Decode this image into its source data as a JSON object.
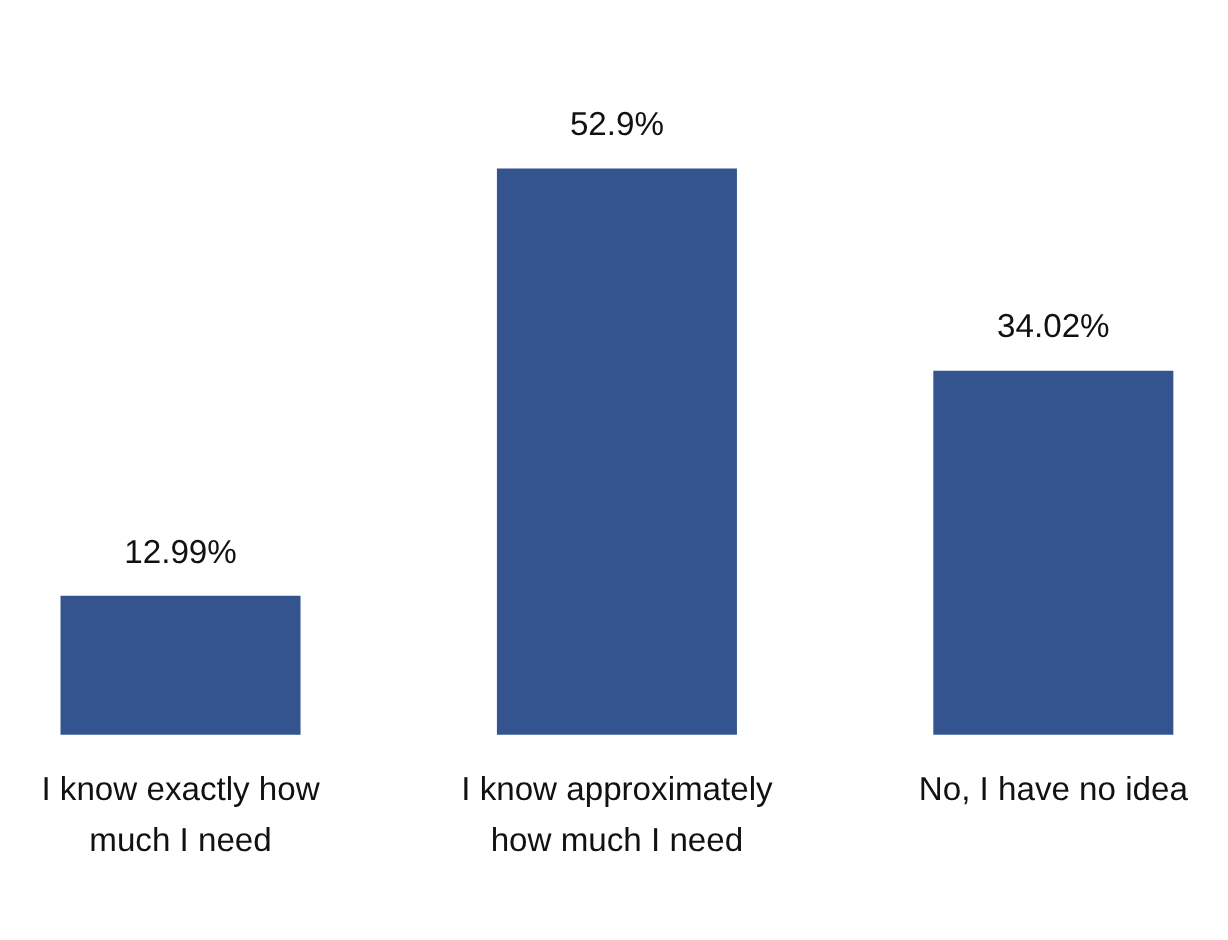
{
  "chart_data": {
    "type": "bar",
    "categories": [
      "I know exactly how much I need",
      "I know approximately how much I need",
      "No, I have no idea"
    ],
    "values": [
      12.99,
      52.9,
      34.02
    ],
    "value_labels": [
      "12.99%",
      "52.9%",
      "34.02%"
    ],
    "color": "#34548f"
  }
}
